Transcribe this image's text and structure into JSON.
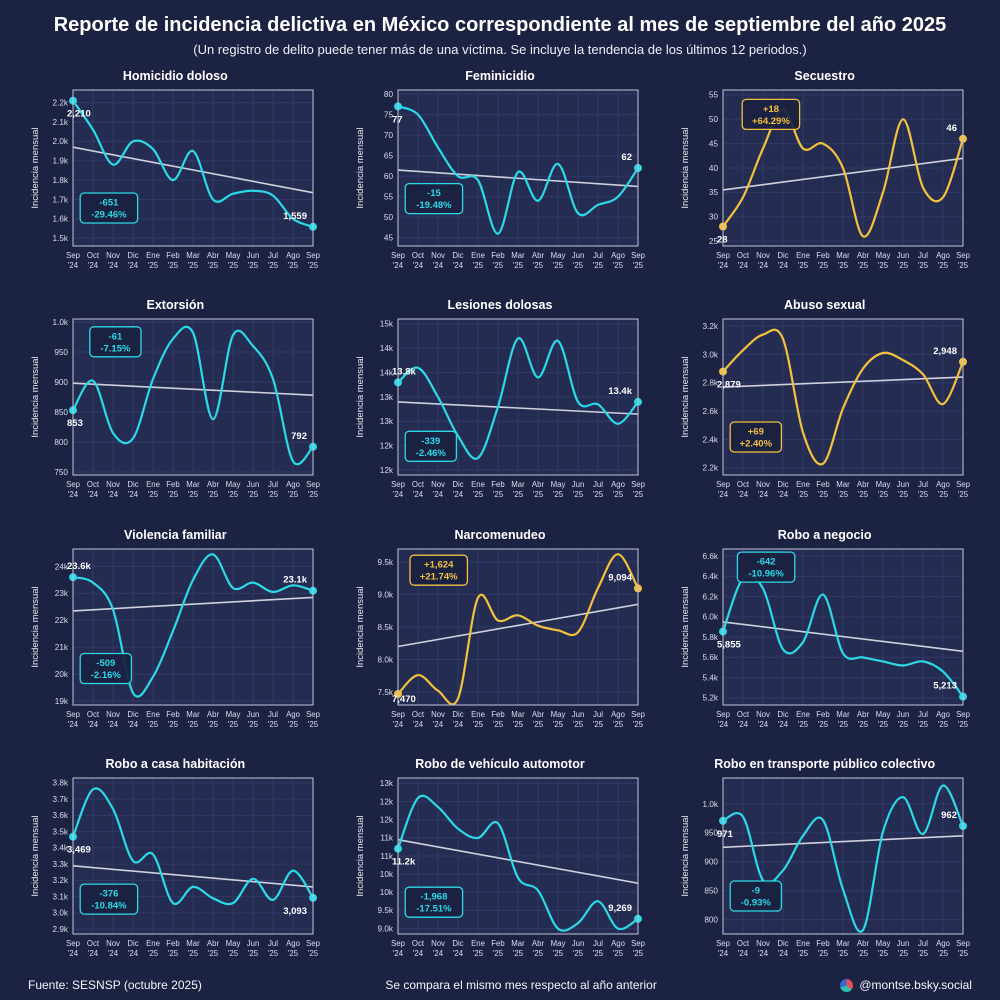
{
  "header": {
    "title": "Reporte de incidencia delictiva en México correspondiente al mes de septiembre del año 2025",
    "subtitle": "(Un registro de delito puede tener más de una víctima. Se incluye la tendencia de los últimos 12 periodos.)"
  },
  "footer": {
    "source": "Fuente: SESNSP (octubre 2025)",
    "note": "Se compara el mismo mes respecto al año anterior",
    "handle": "@montse.bsky.social"
  },
  "colors": {
    "decrease": "#2CD9E6",
    "increase": "#F2C13E",
    "trend": "#E3E3EC",
    "grid": "#303A66",
    "panel_border": "#BFC4D8",
    "panel_bg": "#242C52",
    "background": "#1C2342",
    "text": "#FFFFFF",
    "tick_text": "#D9DDEE"
  },
  "axis": {
    "ylabel": "Incidencia mensual",
    "months": [
      "Sep",
      "Oct",
      "Nov",
      "Dic",
      "Ene",
      "Feb",
      "Mar",
      "Abr",
      "May",
      "Jun",
      "Jul",
      "Ago",
      "Sep"
    ],
    "years": [
      "'24",
      "'24",
      "'24",
      "'24",
      "'25",
      "'25",
      "'25",
      "'25",
      "'25",
      "'25",
      "'25",
      "'25",
      "'25"
    ],
    "categories": [
      "Sep '24",
      "Oct '24",
      "Nov '24",
      "Dic '24",
      "Ene '25",
      "Feb '25",
      "Mar '25",
      "Abr '25",
      "May '25",
      "Jun '25",
      "Jul '25",
      "Ago '25",
      "Sep '25"
    ]
  },
  "chart_data": [
    {
      "title": "Homicidio doloso",
      "type": "line",
      "direction": "decrease",
      "values": [
        2210,
        2060,
        1880,
        2000,
        1960,
        1800,
        1950,
        1700,
        1730,
        1745,
        1720,
        1600,
        1559
      ],
      "ylim": [
        1460,
        2265
      ],
      "yticks": [
        {
          "v": 1500,
          "label": "1.5k"
        },
        {
          "v": 1600,
          "label": "1.6k"
        },
        {
          "v": 1700,
          "label": "1.7k"
        },
        {
          "v": 1800,
          "label": "1.8k"
        },
        {
          "v": 1900,
          "label": "1.9k"
        },
        {
          "v": 2000,
          "label": "2.0k"
        },
        {
          "v": 2100,
          "label": "2.1k"
        },
        {
          "v": 2200,
          "label": "2.2k"
        }
      ],
      "trend": [
        1970,
        1735
      ],
      "start_label": "2,210",
      "end_label": "1,559",
      "start_label_pos": "below",
      "end_label_pos": "above",
      "badge": {
        "delta": "-651",
        "pct": "-29.46%"
      },
      "badge_pos": {
        "x": 0.03,
        "y": 0.66
      }
    },
    {
      "title": "Feminicidio",
      "type": "line",
      "direction": "decrease",
      "values": [
        77,
        75,
        67,
        60,
        59,
        46,
        61,
        54,
        63,
        51,
        53,
        55,
        62
      ],
      "ylim": [
        43,
        81
      ],
      "yticks": [
        {
          "v": 45,
          "label": "45"
        },
        {
          "v": 50,
          "label": "50"
        },
        {
          "v": 55,
          "label": "55"
        },
        {
          "v": 60,
          "label": "60"
        },
        {
          "v": 65,
          "label": "65"
        },
        {
          "v": 70,
          "label": "70"
        },
        {
          "v": 75,
          "label": "75"
        },
        {
          "v": 80,
          "label": "80"
        }
      ],
      "trend": [
        61.5,
        57.5
      ],
      "start_label": "77",
      "end_label": "62",
      "start_label_pos": "below",
      "end_label_pos": "above",
      "badge": {
        "delta": "-15",
        "pct": "-19.48%"
      },
      "badge_pos": {
        "x": 0.03,
        "y": 0.6
      }
    },
    {
      "title": "Secuestro",
      "type": "line",
      "direction": "increase",
      "values": [
        28,
        34,
        44,
        52,
        44,
        45,
        40,
        26,
        35,
        50,
        36,
        34,
        46
      ],
      "ylim": [
        24,
        56
      ],
      "yticks": [
        {
          "v": 25,
          "label": "25"
        },
        {
          "v": 30,
          "label": "30"
        },
        {
          "v": 35,
          "label": "35"
        },
        {
          "v": 40,
          "label": "40"
        },
        {
          "v": 45,
          "label": "45"
        },
        {
          "v": 50,
          "label": "50"
        },
        {
          "v": 55,
          "label": "55"
        }
      ],
      "trend": [
        35.5,
        42
      ],
      "start_label": "28",
      "end_label": "46",
      "start_label_pos": "below",
      "end_label_pos": "above",
      "badge": {
        "delta": "+18",
        "pct": "+64.29%"
      },
      "badge_pos": {
        "x": 0.08,
        "y": 0.06
      }
    },
    {
      "title": "Extorsión",
      "type": "line",
      "direction": "decrease",
      "values": [
        853,
        902,
        815,
        806,
        905,
        972,
        982,
        838,
        978,
        960,
        905,
        768,
        792
      ],
      "ylim": [
        745,
        1005
      ],
      "yticks": [
        {
          "v": 750,
          "label": "750"
        },
        {
          "v": 800,
          "label": "800"
        },
        {
          "v": 850,
          "label": "850"
        },
        {
          "v": 900,
          "label": "900"
        },
        {
          "v": 950,
          "label": "950"
        },
        {
          "v": 1000,
          "label": "1.0k"
        }
      ],
      "trend": [
        898,
        878
      ],
      "start_label": "853",
      "end_label": "792",
      "start_label_pos": "below",
      "end_label_pos": "above",
      "badge": {
        "delta": "-61",
        "pct": "-7.15%"
      },
      "badge_pos": {
        "x": 0.07,
        "y": 0.05
      }
    },
    {
      "title": "Lesiones dolosas",
      "type": "line",
      "direction": "decrease",
      "values": [
        13800,
        14100,
        13500,
        12700,
        12250,
        13300,
        14700,
        13900,
        14650,
        13400,
        13350,
        12950,
        13400
      ],
      "ylim": [
        11900,
        15100
      ],
      "yticks": [
        {
          "v": 12000,
          "label": "12k"
        },
        {
          "v": 12500,
          "label": "12k"
        },
        {
          "v": 13000,
          "label": "13k"
        },
        {
          "v": 13500,
          "label": "13k"
        },
        {
          "v": 14000,
          "label": "14k"
        },
        {
          "v": 14500,
          "label": "14k"
        },
        {
          "v": 15000,
          "label": "15k"
        }
      ],
      "trend": [
        13400,
        13150
      ],
      "start_label": "13.8k",
      "end_label": "13.4k",
      "start_label_pos": "above",
      "end_label_pos": "above",
      "badge": {
        "delta": "-339",
        "pct": "-2.46%"
      },
      "badge_pos": {
        "x": 0.03,
        "y": 0.72
      }
    },
    {
      "title": "Abuso sexual",
      "type": "line",
      "direction": "increase",
      "values": [
        2879,
        3030,
        3140,
        3110,
        2450,
        2230,
        2620,
        2900,
        3010,
        2960,
        2860,
        2650,
        2948
      ],
      "ylim": [
        2150,
        3250
      ],
      "yticks": [
        {
          "v": 2200,
          "label": "2.2k"
        },
        {
          "v": 2400,
          "label": "2.4k"
        },
        {
          "v": 2600,
          "label": "2.6k"
        },
        {
          "v": 2800,
          "label": "2.8k"
        },
        {
          "v": 3000,
          "label": "3.0k"
        },
        {
          "v": 3200,
          "label": "3.2k"
        }
      ],
      "trend": [
        2770,
        2840
      ],
      "start_label": "2,879",
      "end_label": "2,948",
      "start_label_pos": "below",
      "end_label_pos": "above",
      "badge": {
        "delta": "+69",
        "pct": "+2.40%"
      },
      "badge_pos": {
        "x": 0.03,
        "y": 0.66
      }
    },
    {
      "title": "Violencia familiar",
      "type": "line",
      "direction": "decrease",
      "values": [
        23600,
        23400,
        22400,
        19300,
        19900,
        21600,
        23500,
        24450,
        23200,
        23400,
        23050,
        23300,
        23100
      ],
      "ylim": [
        18850,
        24650
      ],
      "yticks": [
        {
          "v": 19000,
          "label": "19k"
        },
        {
          "v": 20000,
          "label": "20k"
        },
        {
          "v": 21000,
          "label": "21k"
        },
        {
          "v": 22000,
          "label": "22k"
        },
        {
          "v": 23000,
          "label": "23k"
        },
        {
          "v": 24000,
          "label": "24k"
        }
      ],
      "trend": [
        22350,
        22850
      ],
      "start_label": "23.6k",
      "end_label": "23.1k",
      "start_label_pos": "above",
      "end_label_pos": "above",
      "badge": {
        "delta": "-509",
        "pct": "-2.16%"
      },
      "badge_pos": {
        "x": 0.03,
        "y": 0.67
      }
    },
    {
      "title": "Narcomenudeo",
      "type": "line",
      "direction": "increase",
      "values": [
        7470,
        7760,
        7520,
        7400,
        8950,
        8600,
        8680,
        8520,
        8450,
        8420,
        9100,
        9620,
        9094
      ],
      "ylim": [
        7300,
        9700
      ],
      "yticks": [
        {
          "v": 7500,
          "label": "7.5k"
        },
        {
          "v": 8000,
          "label": "8.0k"
        },
        {
          "v": 8500,
          "label": "8.5k"
        },
        {
          "v": 9000,
          "label": "9.0k"
        },
        {
          "v": 9500,
          "label": "9.5k"
        }
      ],
      "trend": [
        8200,
        8850
      ],
      "start_label": "7,470",
      "end_label": "9,094",
      "start_label_pos": "below",
      "end_label_pos": "above",
      "badge": {
        "delta": "+1,624",
        "pct": "+21.74%"
      },
      "badge_pos": {
        "x": 0.05,
        "y": 0.04
      }
    },
    {
      "title": "Robo a negocio",
      "type": "line",
      "direction": "decrease",
      "values": [
        5855,
        6380,
        6280,
        5680,
        5750,
        6220,
        5640,
        5600,
        5560,
        5520,
        5560,
        5460,
        5213
      ],
      "ylim": [
        5130,
        6670
      ],
      "yticks": [
        {
          "v": 5200,
          "label": "5.2k"
        },
        {
          "v": 5400,
          "label": "5.4k"
        },
        {
          "v": 5600,
          "label": "5.6k"
        },
        {
          "v": 5800,
          "label": "5.8k"
        },
        {
          "v": 6000,
          "label": "6.0k"
        },
        {
          "v": 6200,
          "label": "6.2k"
        },
        {
          "v": 6400,
          "label": "6.4k"
        },
        {
          "v": 6600,
          "label": "6.6k"
        }
      ],
      "trend": [
        5950,
        5660
      ],
      "start_label": "5,855",
      "end_label": "5,213",
      "start_label_pos": "below",
      "end_label_pos": "above",
      "badge": {
        "delta": "-642",
        "pct": "-10.96%"
      },
      "badge_pos": {
        "x": 0.06,
        "y": 0.02
      }
    },
    {
      "title": "Robo a casa habitación",
      "type": "line",
      "direction": "decrease",
      "values": [
        3469,
        3760,
        3640,
        3320,
        3360,
        3060,
        3160,
        3090,
        3060,
        3210,
        3080,
        3260,
        3093
      ],
      "ylim": [
        2870,
        3830
      ],
      "yticks": [
        {
          "v": 2900,
          "label": "2.9k"
        },
        {
          "v": 3000,
          "label": "3.0k"
        },
        {
          "v": 3100,
          "label": "3.1k"
        },
        {
          "v": 3200,
          "label": "3.2k"
        },
        {
          "v": 3300,
          "label": "3.3k"
        },
        {
          "v": 3400,
          "label": "3.4k"
        },
        {
          "v": 3500,
          "label": "3.5k"
        },
        {
          "v": 3600,
          "label": "3.6k"
        },
        {
          "v": 3700,
          "label": "3.7k"
        },
        {
          "v": 3800,
          "label": "3.8k"
        }
      ],
      "trend": [
        3290,
        3160
      ],
      "start_label": "3,469",
      "end_label": "3,093",
      "start_label_pos": "below",
      "end_label_pos": "below",
      "badge": {
        "delta": "-376",
        "pct": "-10.84%"
      },
      "badge_pos": {
        "x": 0.03,
        "y": 0.68
      }
    },
    {
      "title": "Robo de vehículo automotor",
      "type": "line",
      "direction": "decrease",
      "values": [
        11200,
        12600,
        12350,
        11750,
        11500,
        11900,
        10400,
        10050,
        9000,
        9150,
        9750,
        9000,
        9269
      ],
      "ylim": [
        8850,
        13150
      ],
      "yticks": [
        {
          "v": 9000,
          "label": "9.0k"
        },
        {
          "v": 9500,
          "label": "9.5k"
        },
        {
          "v": 10000,
          "label": "10k"
        },
        {
          "v": 10500,
          "label": "10k"
        },
        {
          "v": 11000,
          "label": "11k"
        },
        {
          "v": 11500,
          "label": "11k"
        },
        {
          "v": 12000,
          "label": "12k"
        },
        {
          "v": 12500,
          "label": "12k"
        },
        {
          "v": 13000,
          "label": "13k"
        }
      ],
      "trend": [
        11450,
        10250
      ],
      "start_label": "11.2k",
      "end_label": "9,269",
      "start_label_pos": "below",
      "end_label_pos": "above",
      "badge": {
        "delta": "-1,968",
        "pct": "-17.51%"
      },
      "badge_pos": {
        "x": 0.03,
        "y": 0.7
      }
    },
    {
      "title": "Robo en transporte público colectivo",
      "type": "line",
      "direction": "decrease",
      "values": [
        971,
        978,
        868,
        885,
        945,
        972,
        852,
        782,
        952,
        1012,
        948,
        1032,
        962
      ],
      "ylim": [
        775,
        1045
      ],
      "yticks": [
        {
          "v": 800,
          "label": "800"
        },
        {
          "v": 850,
          "label": "850"
        },
        {
          "v": 900,
          "label": "900"
        },
        {
          "v": 950,
          "label": "950"
        },
        {
          "v": 1000,
          "label": "1.0k"
        }
      ],
      "trend": [
        925,
        945
      ],
      "start_label": "971",
      "end_label": "962",
      "start_label_pos": "below",
      "end_label_pos": "above",
      "badge": {
        "delta": "-9",
        "pct": "-0.93%"
      },
      "badge_pos": {
        "x": 0.03,
        "y": 0.66
      }
    }
  ]
}
